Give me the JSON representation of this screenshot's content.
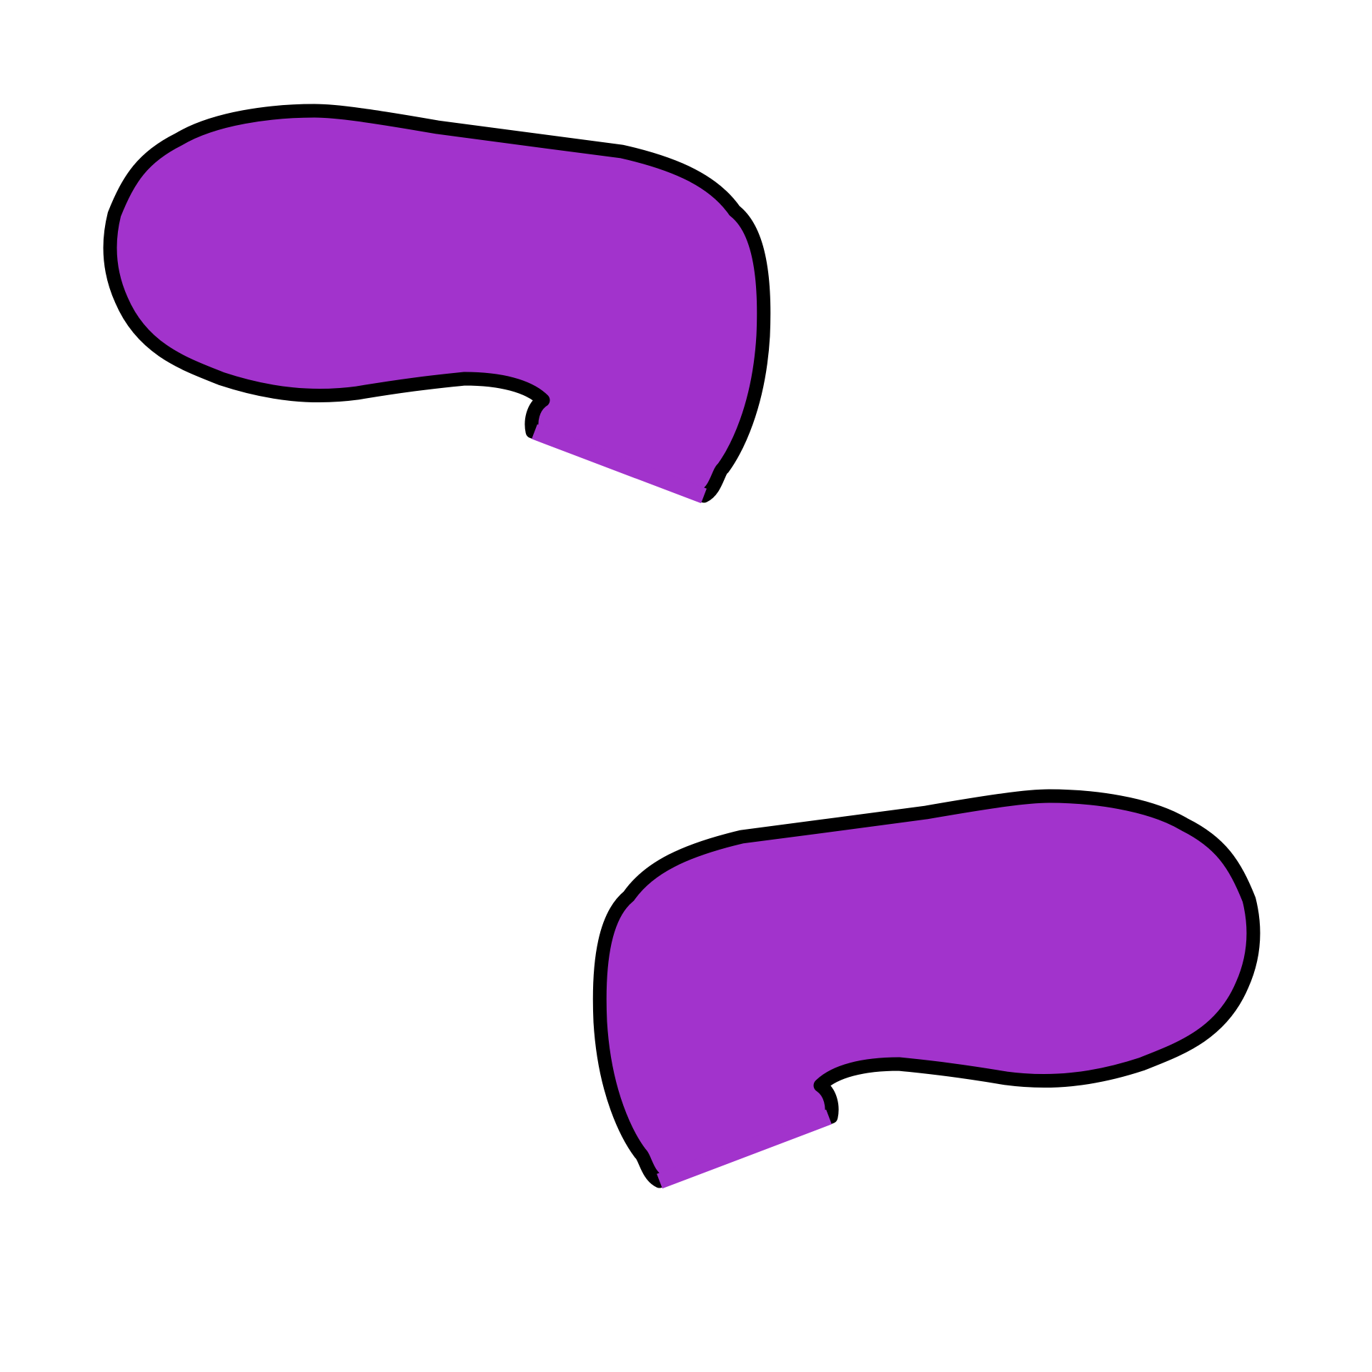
{
  "colors": {
    "background": "#ffffff",
    "fill": "#a233cc",
    "outline": "#000000"
  },
  "shapes": [
    {
      "name": "purple-blob-upper",
      "description": ""
    },
    {
      "name": "purple-blob-lower",
      "description": ""
    }
  ]
}
